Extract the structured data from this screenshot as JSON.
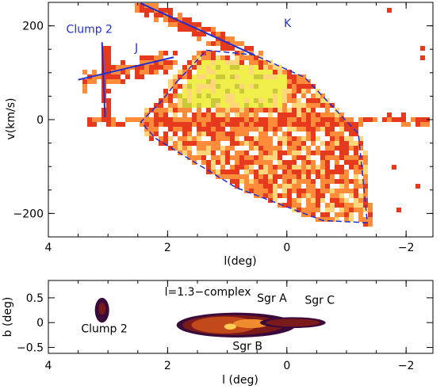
{
  "chart_data": [
    {
      "type": "heatmap",
      "panel": "top",
      "xlabel": "l(deg)",
      "ylabel": "v(km/s)",
      "xlim": [
        4.0,
        -2.45
      ],
      "ylim": [
        -250,
        250
      ],
      "xticks": [
        "4",
        "2",
        "0",
        "−2"
      ],
      "xtick_values": [
        4,
        2,
        0,
        -2
      ],
      "yticks": [
        "200",
        "0",
        "−200"
      ],
      "ytick_values": [
        200,
        0,
        -200
      ],
      "colormap": [
        "#e63a1e",
        "#ff8c3a",
        "#ffd77a",
        "#f0ee4a",
        "#c9c93a"
      ],
      "annotations": [
        {
          "text": "Clump 2",
          "l": 3.7,
          "v": 185,
          "color": "#1f2fd0"
        },
        {
          "text": "J",
          "l": 2.55,
          "v": 145,
          "color": "#1f2fd0"
        },
        {
          "text": "K",
          "l": 0.05,
          "v": 198,
          "color": "#1f2fd0"
        }
      ],
      "lines": [
        {
          "name": "J",
          "color": "#1f2fd0",
          "points": [
            [
              3.5,
              85
            ],
            [
              1.9,
              133
            ]
          ]
        },
        {
          "name": "Clump 2",
          "color": "#1f2fd0",
          "points": [
            [
              3.1,
              165
            ],
            [
              3.05,
              5
            ]
          ]
        },
        {
          "name": "K",
          "color": "#1f2fd0",
          "points": [
            [
              2.45,
              248
            ],
            [
              0.55,
              138
            ]
          ]
        }
      ],
      "boundary": {
        "style": "dashed",
        "color": "#1f2fd0",
        "points": [
          [
            1.85,
            80
          ],
          [
            1.35,
            148
          ],
          [
            0.55,
            138
          ],
          [
            -0.3,
            90
          ],
          [
            -1.2,
            -30
          ],
          [
            -1.35,
            -220
          ],
          [
            -0.6,
            -215
          ],
          [
            0.85,
            -145
          ],
          [
            2.2,
            -40
          ],
          [
            2.45,
            -5
          ],
          [
            2.1,
            40
          ],
          [
            1.85,
            80
          ]
        ]
      }
    },
    {
      "type": "heatmap",
      "panel": "bottom",
      "xlabel": "l (deg)",
      "ylabel": "b (deg)",
      "xlim": [
        4.0,
        -2.45
      ],
      "ylim": [
        -0.62,
        0.85
      ],
      "xticks": [
        "4",
        "2",
        "0",
        "−2"
      ],
      "xtick_values": [
        4,
        2,
        0,
        -2
      ],
      "yticks": [
        "0.5",
        "0",
        "−0.5"
      ],
      "ytick_values": [
        0.5,
        0,
        -0.5
      ],
      "colormap": [
        "#3a0a3a",
        "#7a1a1a",
        "#c24a1a",
        "#f08c30",
        "#ffcc55"
      ],
      "annotations": [
        {
          "text": "l=1.3−complex",
          "l": 2.05,
          "b": 0.55,
          "color": "#000000"
        },
        {
          "text": "Sgr A",
          "l": 0.5,
          "b": 0.42,
          "color": "#000000"
        },
        {
          "text": "Sgr C",
          "l": -0.3,
          "b": 0.38,
          "color": "#000000"
        },
        {
          "text": "Clump 2",
          "l": 3.45,
          "b": -0.2,
          "color": "#000000"
        },
        {
          "text": "Sgr B",
          "l": 0.91,
          "b": -0.55,
          "color": "#000000"
        }
      ]
    }
  ]
}
